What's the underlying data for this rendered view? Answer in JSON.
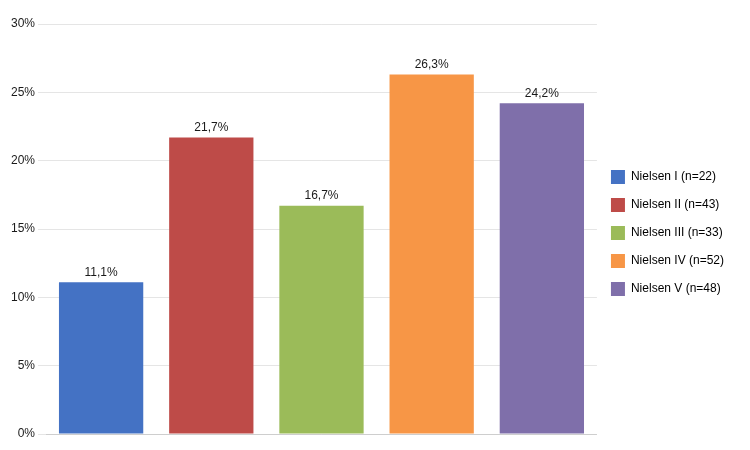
{
  "chart_data": {
    "type": "bar",
    "categories": [
      "Nielsen I (n=22)",
      "Nielsen II (n=43)",
      "Nielsen III (n=33)",
      "Nielsen IV (n=52)",
      "Nielsen V (n=48)"
    ],
    "values": [
      11.1,
      21.7,
      16.7,
      26.3,
      24.2
    ],
    "value_labels": [
      "11,1%",
      "21,7%",
      "16,7%",
      "26,3%",
      "24,2%"
    ],
    "colors": [
      "#4472c4",
      "#be4b48",
      "#9bbb59",
      "#f79646",
      "#7f6faa"
    ],
    "data_labels": true,
    "ylim": [
      0,
      30
    ],
    "yticks": [
      {
        "value": 0,
        "label": "0%"
      },
      {
        "value": 5,
        "label": "5%"
      },
      {
        "value": 10,
        "label": "10%"
      },
      {
        "value": 15,
        "label": "15%"
      },
      {
        "value": 20,
        "label": "20%"
      },
      {
        "value": 25,
        "label": "25%"
      },
      {
        "value": 30,
        "label": "30%"
      }
    ],
    "grid": true,
    "legend": "right",
    "tick_labels": "y"
  }
}
